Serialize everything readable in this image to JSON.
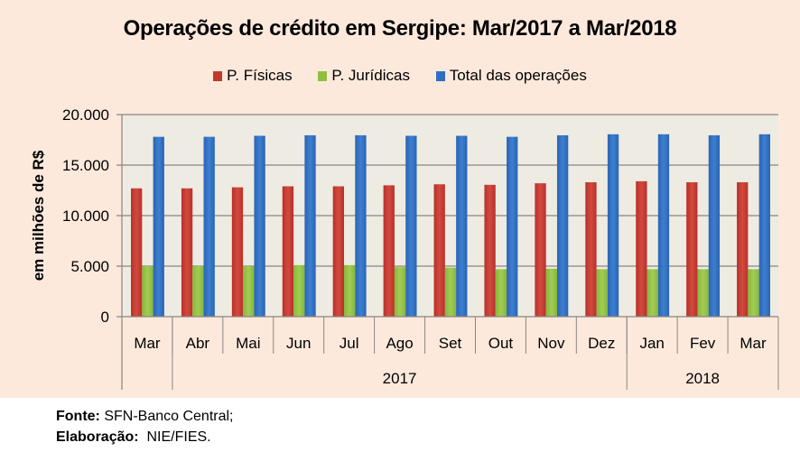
{
  "footer": {
    "source_label": "Fonte:",
    "source_value": "SFN-Banco Central;",
    "elab_label": "Elaboração:",
    "elab_value": "NIE/FIES."
  },
  "colors": {
    "pf": "#c0392b",
    "pj": "#8fbf3f",
    "total": "#2f6fc0",
    "plot_bg": "#eeebe2",
    "chart_bg": "#fde9dc"
  },
  "chart_data": {
    "type": "bar",
    "title": "Operações de crédito em Sergipe: Mar/2017 a Mar/2018",
    "ylabel": "em milhões de R$",
    "xlabel": "",
    "ylim": [
      0,
      20000
    ],
    "yticks": [
      "0",
      "5.000",
      "10.000",
      "15.000",
      "20.000"
    ],
    "ytick_values": [
      0,
      5000,
      10000,
      15000,
      20000
    ],
    "grid": true,
    "legend_position": "top",
    "categories": [
      "Mar",
      "Abr",
      "Mai",
      "Jun",
      "Jul",
      "Ago",
      "Set",
      "Out",
      "Nov",
      "Dez",
      "Jan",
      "Fev",
      "Mar"
    ],
    "year_groups": [
      {
        "label": "",
        "start": 0,
        "end": 0
      },
      {
        "label": "2017",
        "start": 1,
        "end": 9
      },
      {
        "label": "2018",
        "start": 10,
        "end": 12
      }
    ],
    "series": [
      {
        "name": "P. Físicas",
        "color": "#c0392b",
        "values": [
          12700,
          12700,
          12800,
          12900,
          12900,
          13000,
          13100,
          13050,
          13200,
          13300,
          13400,
          13300,
          13300
        ]
      },
      {
        "name": "P. Jurídicas",
        "color": "#8fbf3f",
        "values": [
          5000,
          5000,
          5000,
          5100,
          5100,
          4900,
          4850,
          4700,
          4750,
          4700,
          4700,
          4700,
          4700
        ]
      },
      {
        "name": "Total das operações",
        "color": "#2f6fc0",
        "values": [
          17800,
          17800,
          17900,
          17950,
          17950,
          17900,
          17900,
          17800,
          17950,
          18050,
          18050,
          17950,
          18050
        ]
      }
    ]
  }
}
